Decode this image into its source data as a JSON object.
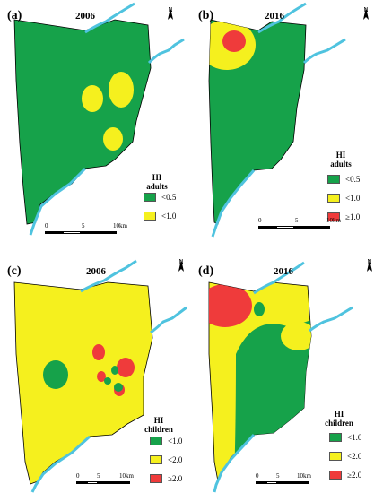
{
  "colors": {
    "green": "#16a24a",
    "yellow": "#f5f01e",
    "red": "#ef3b3b",
    "river": "#4fc3df",
    "boundary": "#000000"
  },
  "north_arrow": {
    "label": "N",
    "icon": "north-arrow-icon"
  },
  "scale_bar": {
    "labels": [
      "0",
      "5",
      "10km"
    ]
  },
  "panels": [
    {
      "label": "(a)",
      "year": "2006",
      "legend": {
        "title_lines": [
          "HI",
          "adults"
        ],
        "items": [
          {
            "label": "<0.5",
            "color": "#16a24a"
          },
          {
            "label": "<1.0",
            "color": "#f5f01e"
          }
        ]
      }
    },
    {
      "label": "(b)",
      "year": "2016",
      "legend": {
        "title_lines": [
          "HI",
          "adults"
        ],
        "items": [
          {
            "label": "<0.5",
            "color": "#16a24a"
          },
          {
            "label": "<1.0",
            "color": "#f5f01e"
          },
          {
            "label": "≥1.0",
            "color": "#ef3b3b"
          }
        ]
      }
    },
    {
      "label": "(c)",
      "year": "2006",
      "legend": {
        "title_lines": [
          "HI",
          "children"
        ],
        "items": [
          {
            "label": "<1.0",
            "color": "#16a24a"
          },
          {
            "label": "<2.0",
            "color": "#f5f01e"
          },
          {
            "label": "≥2.0",
            "color": "#ef3b3b"
          }
        ]
      }
    },
    {
      "label": "(d)",
      "year": "2016",
      "legend": {
        "title_lines": [
          "HI",
          "children"
        ],
        "items": [
          {
            "label": "<1.0",
            "color": "#16a24a"
          },
          {
            "label": "<2.0",
            "color": "#f5f01e"
          },
          {
            "label": "≥2.0",
            "color": "#ef3b3b"
          }
        ]
      }
    }
  ]
}
